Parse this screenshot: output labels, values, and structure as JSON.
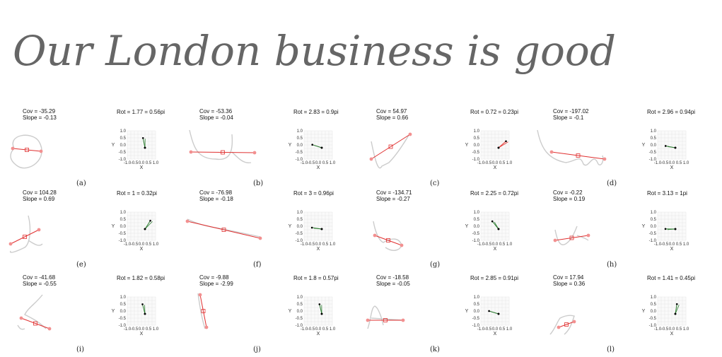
{
  "handwriting": {
    "text": "Our London business is good"
  },
  "panels": [
    {
      "label": "(a)",
      "cov": "Cov = -35.29",
      "slope": "Slope = -0.13",
      "rot": "Rot = 1.77 = 0.56pi"
    },
    {
      "label": "(b)",
      "cov": "Cov = -53.36",
      "slope": "Slope = -0.04",
      "rot": "Rot = 2.83 = 0.9pi"
    },
    {
      "label": "(c)",
      "cov": "Cov = 54.97",
      "slope": "Slope = 0.66",
      "rot": "Rot = 0.72 = 0.23pi"
    },
    {
      "label": "(d)",
      "cov": "Cov = -197.02",
      "slope": "Slope = -0.1",
      "rot": "Rot = 2.96 = 0.94pi"
    },
    {
      "label": "(e)",
      "cov": "Cov = 104.28",
      "slope": "Slope = 0.69",
      "rot": "Rot = 1 = 0.32pi"
    },
    {
      "label": "(f)",
      "cov": "Cov = -76.98",
      "slope": "Slope = -0.18",
      "rot": "Rot = 3 = 0.96pi"
    },
    {
      "label": "(g)",
      "cov": "Cov = -134.71",
      "slope": "Slope = -0.27",
      "rot": "Rot = 2.25 = 0.72pi"
    },
    {
      "label": "(h)",
      "cov": "Cov = -0.22",
      "slope": "Slope = 0.19",
      "rot": "Rot = 3.13 = 1pi"
    },
    {
      "label": "(i)",
      "cov": "Cov = -41.68",
      "slope": "Slope = -0.55",
      "rot": "Rot = 1.82 = 0.58pi"
    },
    {
      "label": "(j)",
      "cov": "Cov = -9.88",
      "slope": "Slope = -2.99",
      "rot": "Rot = 1.8 = 0.57pi"
    },
    {
      "label": "(k)",
      "cov": "Cov = -18.58",
      "slope": "Slope = -0.05",
      "rot": "Rot = 2.85 = 0.91pi"
    },
    {
      "label": "(l)",
      "cov": "Cov = 17.94",
      "slope": "Slope = 0.36",
      "rot": "Rot = 1.41 = 0.45pi"
    }
  ],
  "axis": {
    "xlabel": "X",
    "ylabel": "Y",
    "xticks": [
      "-1.0",
      "-0.5",
      "0.0",
      "0.5",
      "1.0"
    ],
    "yticks": [
      "1.0",
      "0.5",
      "0.0",
      "-0.5",
      "-1.0"
    ]
  },
  "colors": {
    "trajectory": "#cccccc",
    "fit": "#e03030",
    "endpoint": "#f29090",
    "vector_green": "#2e7d32",
    "vector_red": "#e53935",
    "grid": "#e6e6e6"
  }
}
